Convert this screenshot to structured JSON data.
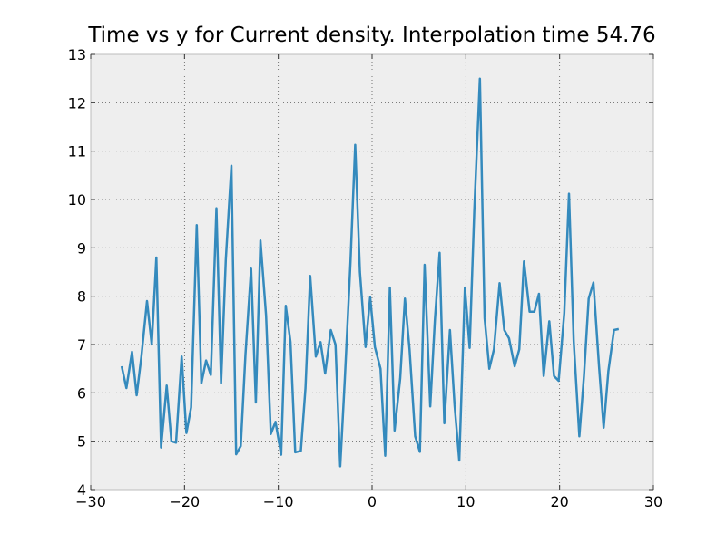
{
  "chart_data": {
    "type": "line",
    "title": "Time vs y for Current density. Interpolation time 54.76",
    "xlabel": "",
    "ylabel": "",
    "xlim": [
      -30,
      30
    ],
    "ylim": [
      4,
      13
    ],
    "xticks": [
      -30,
      -20,
      -10,
      0,
      10,
      20,
      30
    ],
    "yticks": [
      4,
      5,
      6,
      7,
      8,
      9,
      10,
      11,
      12,
      13
    ],
    "xtick_labels": [
      "−30",
      "−20",
      "−10",
      "0",
      "10",
      "20",
      "30"
    ],
    "ytick_labels": [
      "4",
      "5",
      "6",
      "7",
      "8",
      "9",
      "10",
      "11",
      "12",
      "13"
    ],
    "grid": true,
    "background_color": "#eeeeee",
    "line_color": "#348abd",
    "series": [
      {
        "x": [
          -26.7,
          -26.2,
          -25.6,
          -25.1,
          -24.6,
          -24.0,
          -23.5,
          -23.0,
          -22.5,
          -21.9,
          -21.4,
          -20.9,
          -20.3,
          -19.8,
          -19.3,
          -18.7,
          -18.2,
          -17.7,
          -17.2,
          -16.6,
          -16.1,
          -15.6,
          -15.0,
          -14.5,
          -14.0,
          -13.5,
          -12.9,
          -12.4,
          -11.9,
          -11.3,
          -10.8,
          -10.3,
          -9.7,
          -9.2,
          -8.7,
          -8.2,
          -7.6,
          -7.1,
          -6.6,
          -6.0,
          -5.5,
          -5.0,
          -4.4,
          -3.9,
          -3.4,
          -2.9,
          -2.3,
          -1.8,
          -1.3,
          -0.7,
          -0.2,
          0.3,
          0.9,
          1.4,
          1.9,
          2.4,
          3.0,
          3.5,
          4.0,
          4.6,
          5.1,
          5.6,
          6.2,
          6.7,
          7.2,
          7.7,
          8.3,
          8.8,
          9.3,
          9.9,
          10.4,
          10.9,
          11.5,
          12.0,
          12.5,
          13.0,
          13.6,
          14.1,
          14.6,
          15.2,
          15.7,
          16.2,
          16.8,
          17.3,
          17.8,
          18.3,
          18.9,
          19.4,
          19.9,
          20.5,
          21.0,
          21.5,
          22.1,
          22.6,
          23.1,
          23.6,
          24.2,
          24.7,
          25.2,
          25.8,
          26.3
        ],
        "y": [
          6.55,
          6.1,
          6.85,
          5.95,
          6.75,
          7.9,
          7.0,
          8.8,
          4.87,
          6.15,
          5.0,
          4.97,
          6.75,
          5.17,
          5.7,
          9.47,
          6.2,
          6.67,
          6.37,
          9.82,
          6.2,
          8.75,
          10.7,
          4.73,
          4.9,
          6.8,
          8.57,
          5.8,
          9.15,
          7.6,
          5.15,
          5.4,
          4.72,
          7.8,
          7.05,
          4.77,
          4.8,
          6.1,
          8.42,
          6.75,
          7.05,
          6.4,
          7.3,
          7.0,
          4.48,
          6.3,
          8.7,
          11.13,
          8.5,
          6.95,
          7.98,
          6.95,
          6.5,
          4.7,
          8.18,
          5.22,
          6.3,
          7.95,
          6.9,
          5.1,
          4.78,
          8.65,
          5.72,
          7.5,
          8.9,
          5.37,
          7.3,
          5.75,
          4.6,
          8.18,
          6.93,
          9.75,
          12.5,
          7.55,
          6.5,
          6.9,
          8.27,
          7.3,
          7.13,
          6.55,
          6.9,
          8.72,
          7.68,
          7.68,
          8.05,
          6.35,
          7.48,
          6.35,
          6.25,
          7.65,
          10.12,
          7.07,
          5.1,
          6.35,
          7.95,
          8.28,
          6.55,
          5.28,
          6.45,
          7.3,
          7.32
        ]
      }
    ]
  }
}
